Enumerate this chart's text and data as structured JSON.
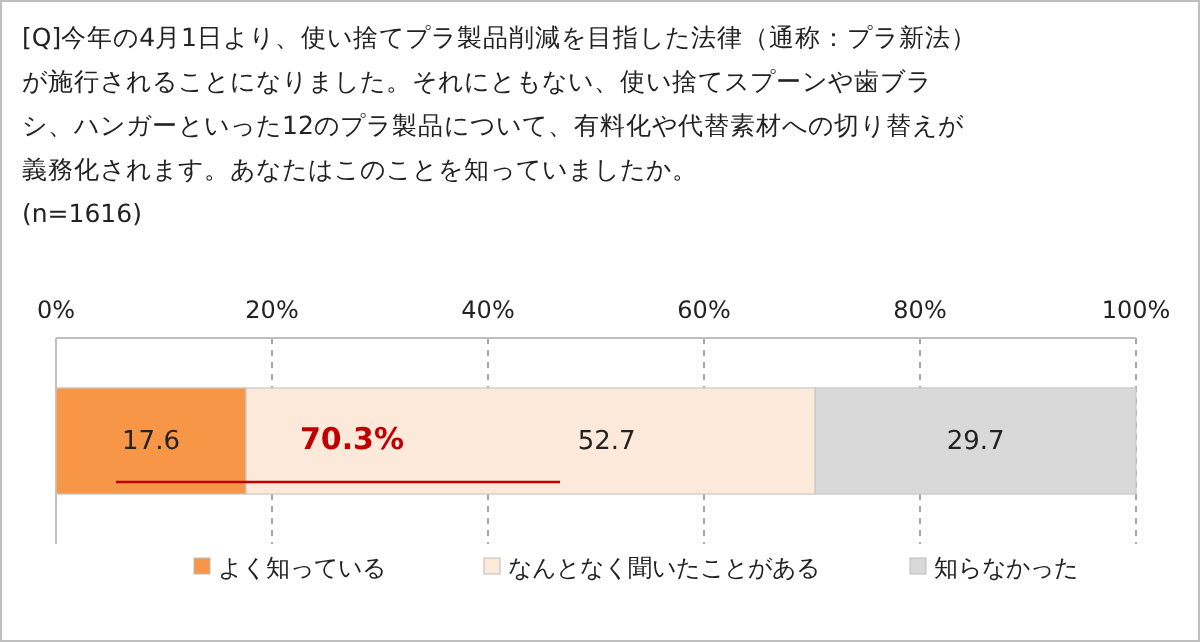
{
  "chart_data": {
    "type": "bar",
    "orientation": "horizontal",
    "stacked": true,
    "title": "[Q]今年の4月1日より、使い捨てプラ製品削減を目指した法律（通称：プラ新法）が施行されることになりました。それにともない、使い捨てスプーンや歯ブラシ、ハンガーといった12のプラ製品について、有料化や代替素材への切り替えが義務化されます。あなたはこのことを知っていましたか。",
    "subtitle": "(n=1616)",
    "categories": [
      null
    ],
    "series": [
      {
        "name": "よく知っている",
        "color": "#f79646",
        "values": [
          17.6
        ]
      },
      {
        "name": "なんとなく聞いたことがある",
        "color": "#fde9d9",
        "values": [
          52.7
        ]
      },
      {
        "name": "知らなかった",
        "color": "#d9d9d9",
        "values": [
          29.7
        ]
      }
    ],
    "xlim": [
      0,
      100
    ],
    "xticks": [
      {
        "value": 0,
        "label": "0%"
      },
      {
        "value": 20,
        "label": "20%"
      },
      {
        "value": 40,
        "label": "40%"
      },
      {
        "value": 60,
        "label": "60%"
      },
      {
        "value": 80,
        "label": "80%"
      },
      {
        "value": 100,
        "label": "100%"
      }
    ],
    "grid": "x",
    "data_labels": true,
    "legend": "bottom",
    "annotations": [
      "70.3%"
    ]
  }
}
